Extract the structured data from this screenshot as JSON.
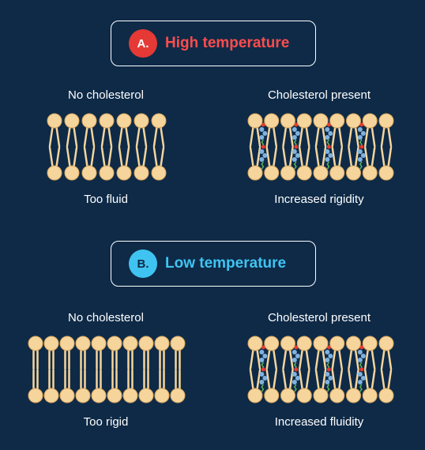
{
  "sections": [
    {
      "badge": "A.",
      "title": "High temperature",
      "accent": "#e53935",
      "panels": [
        {
          "heading": "No cholesterol",
          "caption": "Too fluid",
          "state": "fluid",
          "cholesterol": false
        },
        {
          "heading": "Cholesterol present",
          "caption": "Increased rigidity",
          "state": "fluid",
          "cholesterol": true
        }
      ]
    },
    {
      "badge": "B.",
      "title": "Low temperature",
      "accent": "#3fc4f2",
      "panels": [
        {
          "heading": "No cholesterol",
          "caption": "Too rigid",
          "state": "rigid",
          "cholesterol": false
        },
        {
          "heading": "Cholesterol present",
          "caption": "Increased fluidity",
          "state": "rigid",
          "cholesterol": true
        }
      ]
    }
  ],
  "colors": {
    "background": "#0e2a47",
    "phospholipid_head": "#f6d59c",
    "phospholipid_head_stroke": "#d9a75e",
    "lipid_tail": "#f6d59c",
    "cholesterol_ring": "#7fb2e0",
    "cholesterol_tail": "#5cb85c",
    "cholesterol_head": "#e53935"
  }
}
